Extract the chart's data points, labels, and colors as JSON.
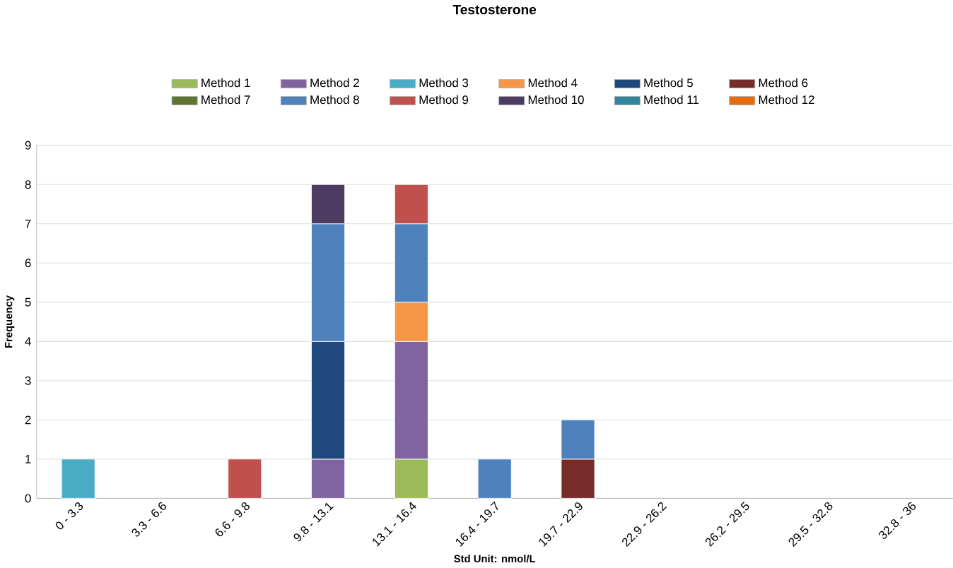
{
  "chart_data": {
    "type": "bar",
    "stacked": true,
    "title": "Testosterone",
    "xlabel": "Std Unit: nmol/L",
    "ylabel": "Frequency",
    "categories": [
      "0 - 3.3",
      "3.3 - 6.6",
      "6.6 - 9.8",
      "9.8 - 13.1",
      "13.1 - 16.4",
      "16.4 - 19.7",
      "19.7 - 22.9",
      "22.9 - 26.2",
      "26.2 - 29.5",
      "29.5 - 32.8",
      "32.8 - 36"
    ],
    "series": [
      {
        "name": "Method 1",
        "color": "#9bbb59",
        "values": [
          null,
          null,
          null,
          null,
          1,
          null,
          null,
          null,
          null,
          null,
          null
        ]
      },
      {
        "name": "Method 2",
        "color": "#8064a2",
        "values": [
          null,
          null,
          null,
          1,
          3,
          null,
          null,
          null,
          null,
          null,
          null
        ]
      },
      {
        "name": "Method 3",
        "color": "#4bacc6",
        "values": [
          1,
          null,
          null,
          null,
          null,
          null,
          null,
          null,
          null,
          null,
          null
        ]
      },
      {
        "name": "Method 4",
        "color": "#f79646",
        "values": [
          null,
          null,
          null,
          null,
          1,
          null,
          null,
          null,
          null,
          null,
          null
        ]
      },
      {
        "name": "Method 5",
        "color": "#1f497d",
        "values": [
          null,
          null,
          null,
          3,
          null,
          null,
          null,
          null,
          null,
          null,
          null
        ]
      },
      {
        "name": "Method 6",
        "color": "#772c2a",
        "values": [
          null,
          null,
          null,
          null,
          null,
          null,
          1,
          null,
          null,
          null,
          null
        ]
      },
      {
        "name": "Method 7",
        "color": "#5f7530",
        "values": [
          null,
          null,
          null,
          null,
          null,
          null,
          null,
          null,
          null,
          null,
          null
        ]
      },
      {
        "name": "Method 8",
        "color": "#4f81bd",
        "values": [
          null,
          null,
          null,
          3,
          2,
          1,
          1,
          null,
          null,
          null,
          null
        ]
      },
      {
        "name": "Method 9",
        "color": "#c0504d",
        "values": [
          null,
          null,
          1,
          null,
          1,
          null,
          null,
          null,
          null,
          null,
          null
        ]
      },
      {
        "name": "Method 10",
        "color": "#4d3b62",
        "values": [
          null,
          null,
          null,
          1,
          null,
          null,
          null,
          null,
          null,
          null,
          null
        ]
      },
      {
        "name": "Method 11",
        "color": "#31859c",
        "values": [
          null,
          null,
          null,
          null,
          null,
          null,
          null,
          null,
          null,
          null,
          null
        ]
      },
      {
        "name": "Method 12",
        "color": "#e46c0a",
        "values": [
          null,
          null,
          null,
          null,
          null,
          null,
          null,
          null,
          null,
          null,
          null
        ]
      }
    ],
    "ylim": [
      0,
      9
    ],
    "yticks": [
      0,
      1,
      2,
      3,
      4,
      5,
      6,
      7,
      8,
      9
    ],
    "grid": "y",
    "legend": "top"
  }
}
